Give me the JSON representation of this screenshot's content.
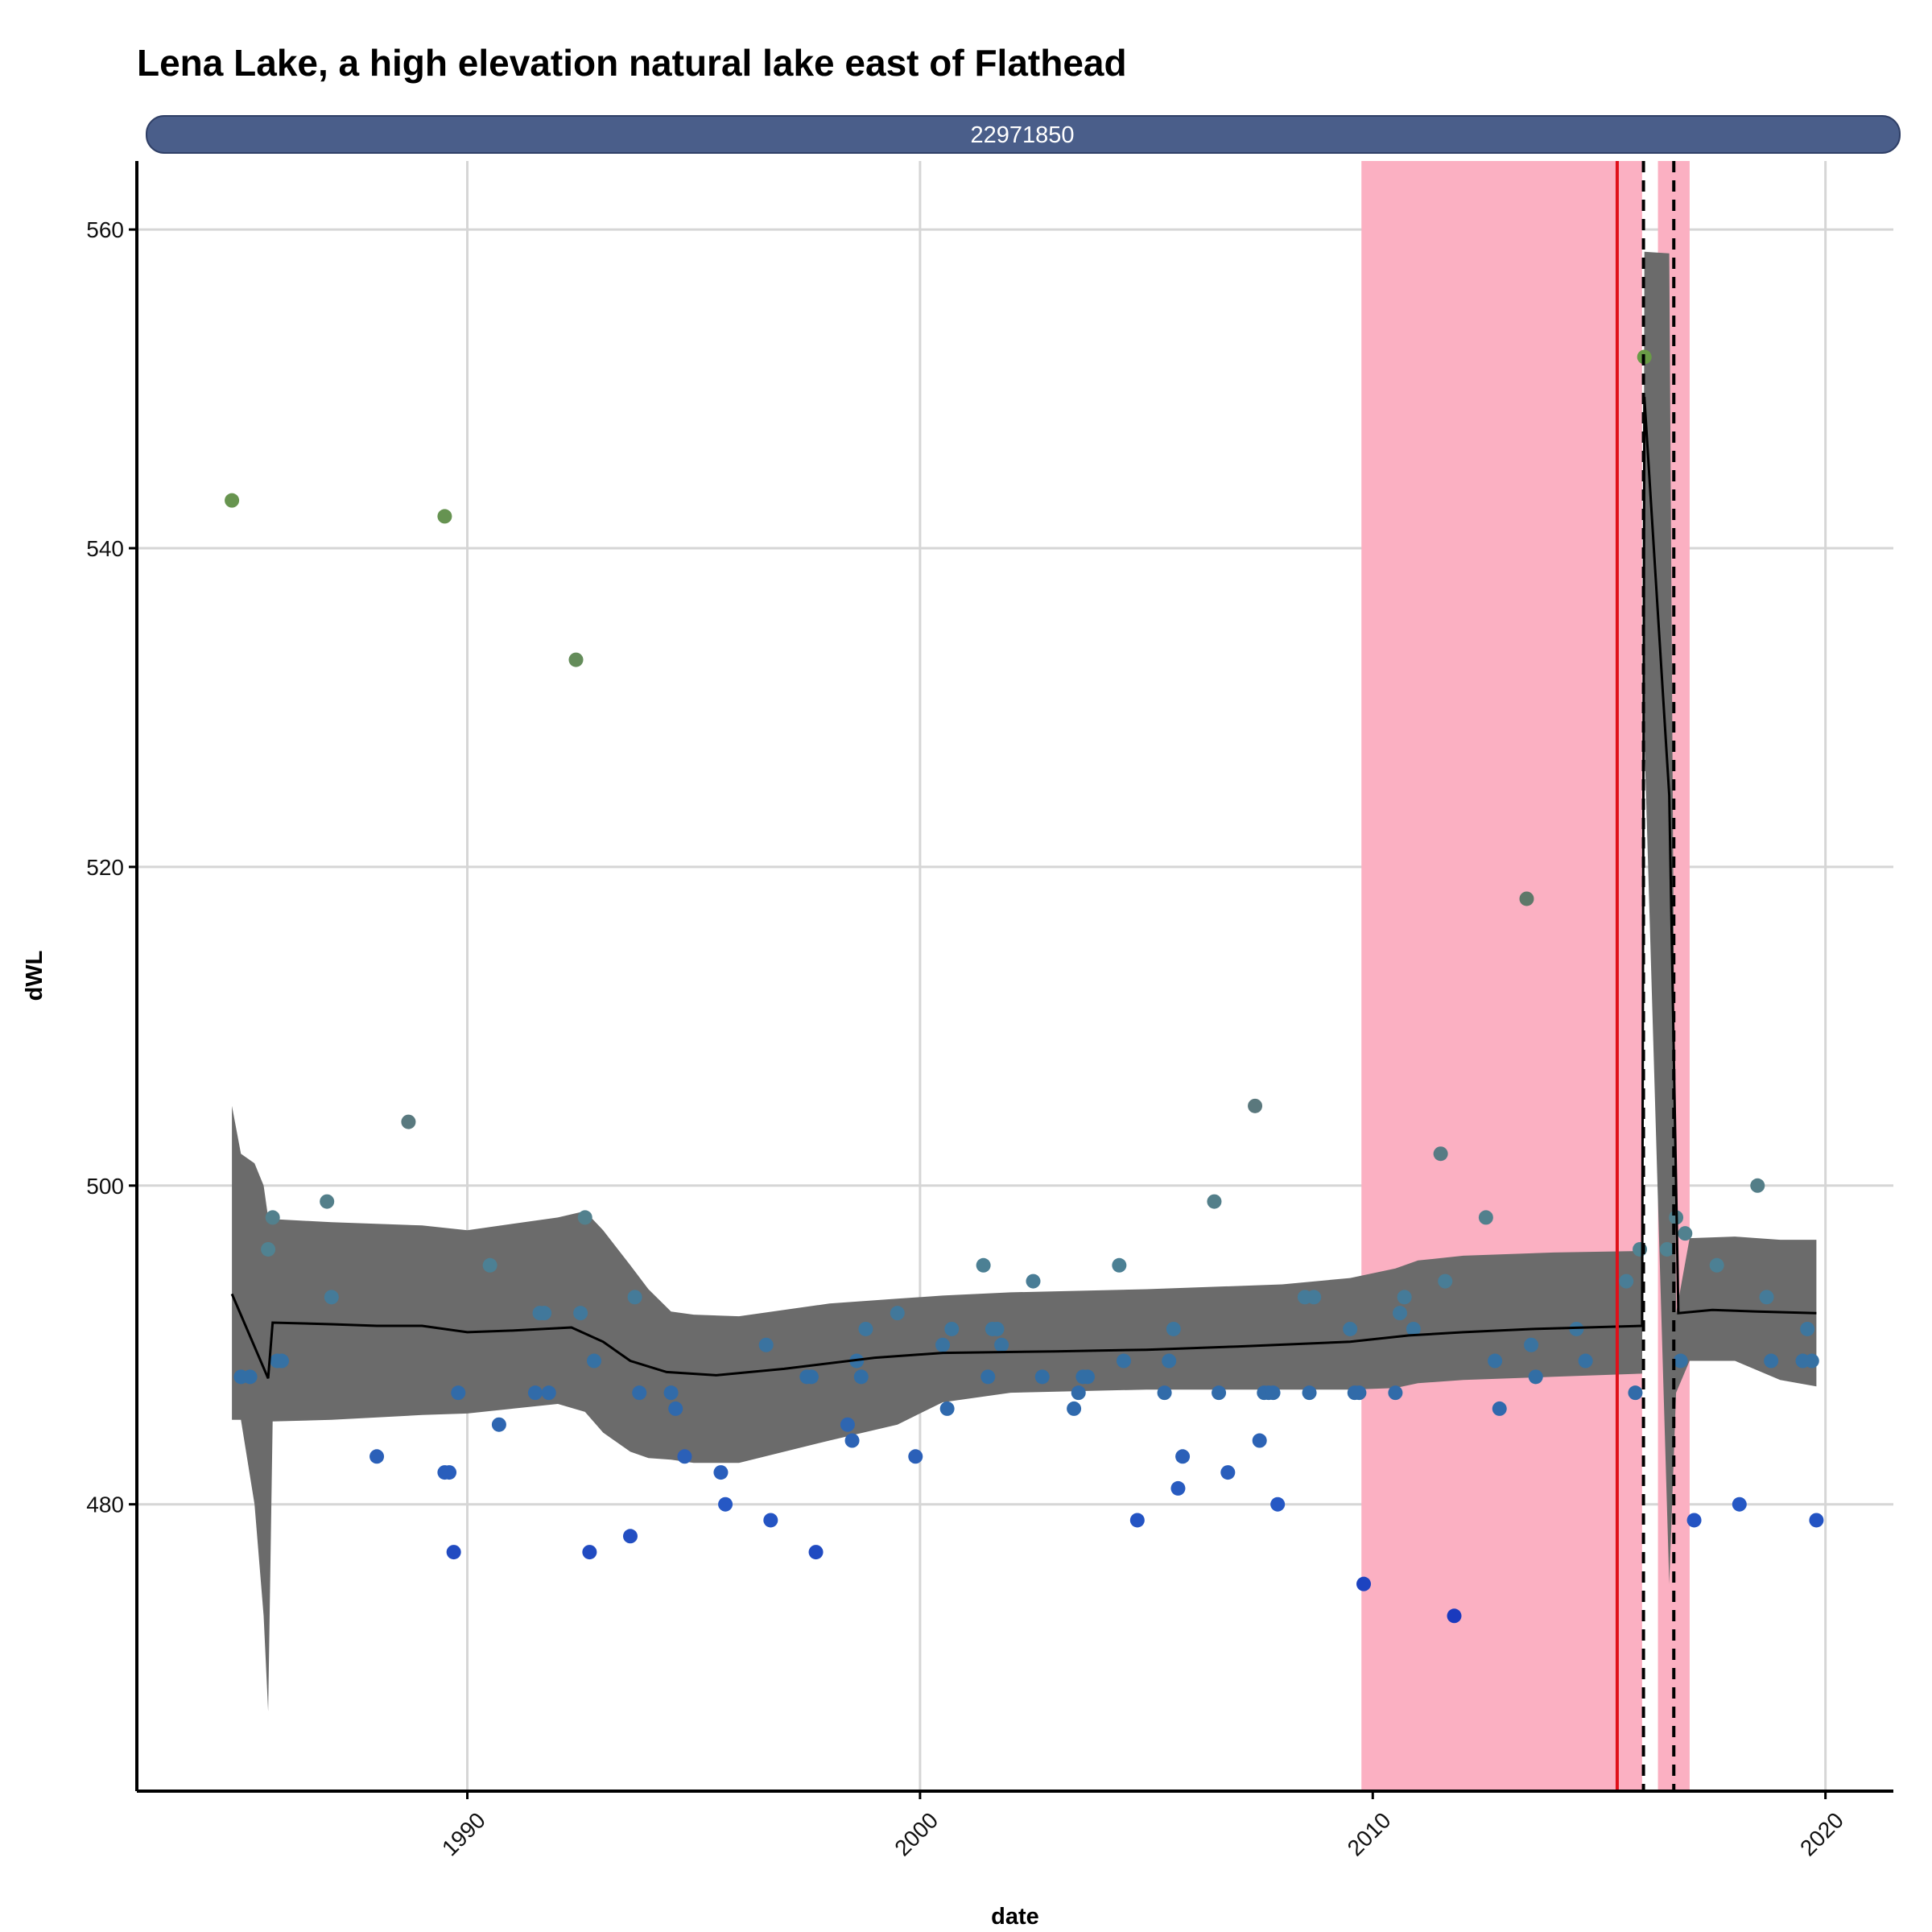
{
  "chart_data": {
    "type": "scatter",
    "title": "Lena Lake, a high elevation natural lake east of Flathead",
    "facet_label": "22971850",
    "xlabel": "date",
    "ylabel": "dWL",
    "xlim": [
      1982.7,
      2021.5
    ],
    "ylim": [
      462,
      564.3
    ],
    "x_ticks": [
      {
        "value": 1990,
        "label": "1990"
      },
      {
        "value": 2000,
        "label": "2000"
      },
      {
        "value": 2010,
        "label": "2010"
      },
      {
        "value": 2020,
        "label": "2020"
      }
    ],
    "y_ticks": [
      {
        "value": 480,
        "label": "480"
      },
      {
        "value": 500,
        "label": "500"
      },
      {
        "value": 520,
        "label": "520"
      },
      {
        "value": 540,
        "label": "540"
      },
      {
        "value": 560,
        "label": "560"
      }
    ],
    "grid": true,
    "highlight_periods": [
      [
        2009.75,
        2015.95
      ],
      [
        2016.3,
        2017.0
      ]
    ],
    "highlight_color": "#fbb0c2",
    "red_line": 2015.4,
    "dashed_lines": [
      2015.98,
      2016.65
    ],
    "colors": {
      "red_line": "#e0101a",
      "band": "#6b6b6b",
      "strip": "#4a5e8a",
      "trend": "#000000"
    },
    "trend": [
      [
        1984.8,
        493.2
      ],
      [
        1985.6,
        487.9
      ],
      [
        1985.7,
        491.4
      ],
      [
        1987.0,
        491.3
      ],
      [
        1988.0,
        491.2
      ],
      [
        1989.0,
        491.2
      ],
      [
        1990.0,
        490.8
      ],
      [
        1991.0,
        490.9
      ],
      [
        1992.3,
        491.1
      ],
      [
        1993.0,
        490.2
      ],
      [
        1993.6,
        489.0
      ],
      [
        1994.4,
        488.3
      ],
      [
        1995.5,
        488.1
      ],
      [
        1997.0,
        488.5
      ],
      [
        1999.0,
        489.2
      ],
      [
        2000.5,
        489.5
      ],
      [
        2003.0,
        489.6
      ],
      [
        2005.0,
        489.7
      ],
      [
        2007.0,
        489.9
      ],
      [
        2009.5,
        490.2
      ],
      [
        2010.8,
        490.6
      ],
      [
        2012.0,
        490.8
      ],
      [
        2013.5,
        491.0
      ],
      [
        2015.95,
        491.2
      ],
      [
        2016.0,
        549.5
      ],
      [
        2016.55,
        524.5
      ],
      [
        2016.75,
        492.0
      ],
      [
        2017.5,
        492.2
      ],
      [
        2018.5,
        492.1
      ],
      [
        2019.8,
        492.0
      ]
    ],
    "band": [
      [
        1984.8,
        505.0,
        485.3
      ],
      [
        1985.0,
        502.0,
        485.3
      ],
      [
        1985.3,
        501.4,
        480.0
      ],
      [
        1985.5,
        500.0,
        473.0
      ],
      [
        1985.6,
        498.0,
        467.0
      ],
      [
        1985.7,
        497.9,
        485.2
      ],
      [
        1987.0,
        497.7,
        485.3
      ],
      [
        1989.0,
        497.5,
        485.6
      ],
      [
        1990.0,
        497.2,
        485.7
      ],
      [
        1991.0,
        497.6,
        486.0
      ],
      [
        1992.0,
        498.0,
        486.3
      ],
      [
        1992.6,
        498.4,
        485.8
      ],
      [
        1993.0,
        497.2,
        484.5
      ],
      [
        1993.6,
        495.0,
        483.3
      ],
      [
        1994.0,
        493.5,
        482.9
      ],
      [
        1994.5,
        492.1,
        482.8
      ],
      [
        1995.0,
        491.9,
        482.6
      ],
      [
        1996.0,
        491.8,
        482.6
      ],
      [
        1998.0,
        492.6,
        484.0
      ],
      [
        1999.5,
        492.9,
        485.0
      ],
      [
        2000.5,
        493.1,
        486.4
      ],
      [
        2002.0,
        493.3,
        487.0
      ],
      [
        2005.0,
        493.5,
        487.2
      ],
      [
        2008.0,
        493.8,
        487.2
      ],
      [
        2009.5,
        494.2,
        487.2
      ],
      [
        2010.5,
        494.8,
        487.3
      ],
      [
        2011.0,
        495.3,
        487.6
      ],
      [
        2012.0,
        495.6,
        487.8
      ],
      [
        2014.0,
        495.8,
        488.0
      ],
      [
        2015.95,
        495.9,
        488.2
      ],
      [
        2016.0,
        558.6,
        528.0
      ],
      [
        2016.55,
        558.5,
        475.0
      ],
      [
        2016.7,
        492.0,
        487.0
      ],
      [
        2017.0,
        496.7,
        489.0
      ],
      [
        2018.0,
        496.8,
        489.0
      ],
      [
        2019.0,
        496.6,
        487.8
      ],
      [
        2019.8,
        496.6,
        487.4
      ]
    ],
    "points": [
      [
        1984.8,
        543
      ],
      [
        1985.0,
        488
      ],
      [
        1985.2,
        488
      ],
      [
        1985.6,
        496
      ],
      [
        1985.7,
        498
      ],
      [
        1985.8,
        489
      ],
      [
        1985.9,
        489
      ],
      [
        1986.9,
        499
      ],
      [
        1987.0,
        493
      ],
      [
        1988.0,
        483
      ],
      [
        1988.7,
        504
      ],
      [
        1989.5,
        542
      ],
      [
        1989.5,
        482
      ],
      [
        1989.6,
        482
      ],
      [
        1989.7,
        477
      ],
      [
        1989.8,
        487
      ],
      [
        1990.5,
        495
      ],
      [
        1990.7,
        485
      ],
      [
        1991.5,
        487
      ],
      [
        1991.6,
        492
      ],
      [
        1991.7,
        492
      ],
      [
        1991.8,
        487
      ],
      [
        1992.4,
        533
      ],
      [
        1992.5,
        492
      ],
      [
        1992.6,
        498
      ],
      [
        1992.7,
        477
      ],
      [
        1992.8,
        489
      ],
      [
        1993.6,
        478
      ],
      [
        1993.7,
        493
      ],
      [
        1993.8,
        487
      ],
      [
        1994.5,
        487
      ],
      [
        1994.6,
        486
      ],
      [
        1994.8,
        483
      ],
      [
        1995.6,
        482
      ],
      [
        1995.7,
        480
      ],
      [
        1996.6,
        490
      ],
      [
        1996.7,
        479
      ],
      [
        1997.5,
        488
      ],
      [
        1997.6,
        488
      ],
      [
        1997.7,
        477
      ],
      [
        1998.4,
        485
      ],
      [
        1998.5,
        484
      ],
      [
        1998.6,
        489
      ],
      [
        1998.7,
        488
      ],
      [
        1998.8,
        491
      ],
      [
        1999.5,
        492
      ],
      [
        1999.9,
        483
      ],
      [
        2000.5,
        490
      ],
      [
        2000.6,
        486
      ],
      [
        2000.7,
        491
      ],
      [
        2001.4,
        495
      ],
      [
        2001.5,
        488
      ],
      [
        2001.6,
        491
      ],
      [
        2001.7,
        491
      ],
      [
        2001.8,
        490
      ],
      [
        2002.5,
        494
      ],
      [
        2002.7,
        488
      ],
      [
        2003.4,
        486
      ],
      [
        2003.5,
        487
      ],
      [
        2003.6,
        488
      ],
      [
        2003.7,
        488
      ],
      [
        2004.4,
        495
      ],
      [
        2004.5,
        489
      ],
      [
        2004.8,
        479
      ],
      [
        2005.4,
        487
      ],
      [
        2005.5,
        489
      ],
      [
        2005.6,
        491
      ],
      [
        2005.7,
        481
      ],
      [
        2005.8,
        483
      ],
      [
        2006.5,
        499
      ],
      [
        2006.6,
        487
      ],
      [
        2006.8,
        482
      ],
      [
        2007.4,
        505
      ],
      [
        2007.5,
        484
      ],
      [
        2007.6,
        487
      ],
      [
        2007.7,
        487
      ],
      [
        2007.8,
        487
      ],
      [
        2007.9,
        480
      ],
      [
        2008.5,
        493
      ],
      [
        2008.6,
        487
      ],
      [
        2008.7,
        493
      ],
      [
        2009.5,
        491
      ],
      [
        2009.6,
        487
      ],
      [
        2009.7,
        487
      ],
      [
        2009.8,
        475
      ],
      [
        2010.5,
        487
      ],
      [
        2010.6,
        492
      ],
      [
        2010.7,
        493
      ],
      [
        2010.9,
        491
      ],
      [
        2011.5,
        502
      ],
      [
        2011.6,
        494
      ],
      [
        2011.8,
        473
      ],
      [
        2012.5,
        498
      ],
      [
        2012.7,
        489
      ],
      [
        2012.8,
        486
      ],
      [
        2013.4,
        518
      ],
      [
        2013.5,
        490
      ],
      [
        2013.6,
        488
      ],
      [
        2014.5,
        491
      ],
      [
        2014.7,
        489
      ],
      [
        2015.6,
        494
      ],
      [
        2015.8,
        487
      ],
      [
        2015.9,
        496
      ],
      [
        2016.0,
        552
      ],
      [
        2016.5,
        496
      ],
      [
        2016.7,
        498
      ],
      [
        2016.8,
        489
      ],
      [
        2016.9,
        497
      ],
      [
        2017.1,
        479
      ],
      [
        2017.6,
        495
      ],
      [
        2018.1,
        480
      ],
      [
        2018.5,
        500
      ],
      [
        2018.7,
        493
      ],
      [
        2018.8,
        489
      ],
      [
        2019.5,
        489
      ],
      [
        2019.6,
        491
      ],
      [
        2019.7,
        489
      ],
      [
        2019.8,
        479
      ]
    ]
  }
}
